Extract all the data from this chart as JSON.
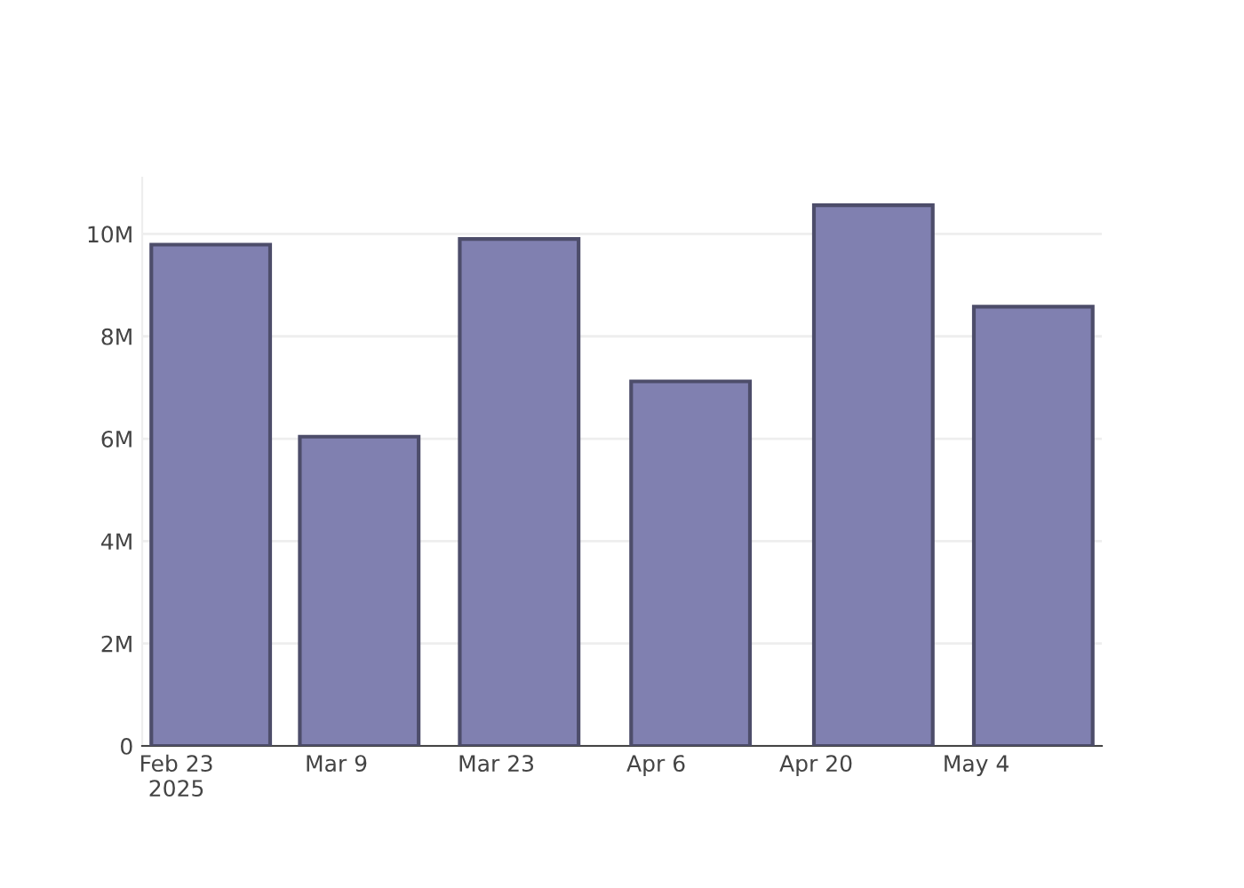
{
  "chart_data": {
    "type": "bar",
    "x": [
      "2025-02-26",
      "2025-03-11",
      "2025-03-25",
      "2025-04-09",
      "2025-04-25",
      "2025-05-09"
    ],
    "values": [
      9790000,
      6040000,
      9900000,
      7120000,
      10560000,
      8580000
    ],
    "color": "#8080b0",
    "xlim": [
      "2025-02-20",
      "2025-05-15"
    ],
    "xticks": [
      {
        "value": "2025-02-23",
        "label": "Feb 23\n2025"
      },
      {
        "value": "2025-03-09",
        "label": "Mar 9"
      },
      {
        "value": "2025-03-23",
        "label": "Mar 23"
      },
      {
        "value": "2025-04-06",
        "label": "Apr 6"
      },
      {
        "value": "2025-04-20",
        "label": "Apr 20"
      },
      {
        "value": "2025-05-04",
        "label": "May 4"
      }
    ],
    "yticks": [
      {
        "value": 0,
        "label": "0"
      },
      {
        "value": 2000000,
        "label": "2M"
      },
      {
        "value": 4000000,
        "label": "4M"
      },
      {
        "value": 6000000,
        "label": "6M"
      },
      {
        "value": 8000000,
        "label": "8M"
      },
      {
        "value": 10000000,
        "label": "10M"
      }
    ],
    "ylim": [
      0,
      11100000
    ],
    "grid": "y"
  }
}
